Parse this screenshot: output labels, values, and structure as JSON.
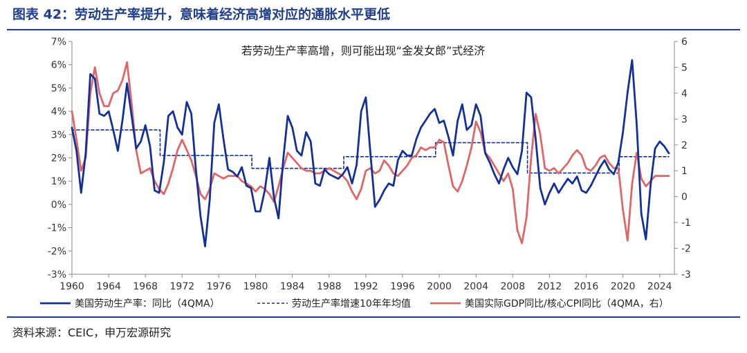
{
  "figure": {
    "title": "图表 42：劳动生产率提升，意味着经济高增对应的通胀水平更低",
    "source": "资料来源：CEIC，申万宏源研究"
  },
  "chart_data": {
    "type": "line",
    "annotation": "若劳动生产率高增，则可能出现“金发女郎”式经济",
    "x_ticks": [
      1960,
      1964,
      1968,
      1972,
      1976,
      1980,
      1984,
      1988,
      1992,
      1996,
      2000,
      2004,
      2008,
      2012,
      2016,
      2020,
      2024
    ],
    "xlim": [
      1960,
      2025.6
    ],
    "y_left": {
      "ticks": [
        -3,
        -2,
        -1,
        0,
        1,
        2,
        3,
        4,
        5,
        6,
        7
      ],
      "tick_labels": [
        "-3%",
        "-2%",
        "-1%",
        "0%",
        "1%",
        "2%",
        "3%",
        "4%",
        "5%",
        "6%",
        "7%"
      ],
      "ylim": [
        -3,
        7
      ]
    },
    "y_right": {
      "ticks": [
        -3,
        -2,
        -1,
        0,
        1,
        2,
        3,
        4,
        5,
        6
      ],
      "tick_labels": [
        "-3",
        "-2",
        "-1",
        "0",
        "1",
        "2",
        "3",
        "4",
        "5",
        "6"
      ],
      "ylim": [
        -3,
        6
      ]
    },
    "legend_position": "bottom",
    "colors": {
      "productivity": "#12309a",
      "avg10": "#12309a",
      "ratio": "#e06666"
    },
    "series": [
      {
        "name": "美国劳动生产率：同比（4QMA）",
        "axis": "left",
        "style": "solid",
        "points": [
          [
            1960,
            3.3
          ],
          [
            1960.5,
            2.3
          ],
          [
            1961,
            0.5
          ],
          [
            1961.5,
            2.2
          ],
          [
            1962,
            5.6
          ],
          [
            1962.5,
            5.4
          ],
          [
            1963,
            3.9
          ],
          [
            1963.5,
            3.8
          ],
          [
            1964,
            4.0
          ],
          [
            1964.5,
            3.2
          ],
          [
            1965,
            2.3
          ],
          [
            1965.5,
            3.6
          ],
          [
            1966,
            5.2
          ],
          [
            1966.5,
            3.8
          ],
          [
            1967,
            2.4
          ],
          [
            1967.5,
            2.7
          ],
          [
            1968,
            3.4
          ],
          [
            1968.5,
            2.5
          ],
          [
            1969,
            0.6
          ],
          [
            1969.5,
            0.5
          ],
          [
            1970,
            1.8
          ],
          [
            1970.5,
            3.8
          ],
          [
            1971,
            4.0
          ],
          [
            1971.5,
            3.3
          ],
          [
            1972,
            3.0
          ],
          [
            1972.5,
            4.4
          ],
          [
            1973,
            3.9
          ],
          [
            1973.5,
            1.5
          ],
          [
            1974,
            -0.5
          ],
          [
            1974.5,
            -1.8
          ],
          [
            1975,
            0.2
          ],
          [
            1975.5,
            3.5
          ],
          [
            1976,
            4.3
          ],
          [
            1976.5,
            2.8
          ],
          [
            1977,
            1.5
          ],
          [
            1977.5,
            1.4
          ],
          [
            1978,
            1.2
          ],
          [
            1978.5,
            1.6
          ],
          [
            1979,
            0.8
          ],
          [
            1979.5,
            0.7
          ],
          [
            1980,
            -0.3
          ],
          [
            1980.5,
            -0.3
          ],
          [
            1981,
            0.6
          ],
          [
            1981.5,
            2.0
          ],
          [
            1982,
            0.3
          ],
          [
            1982.5,
            -0.6
          ],
          [
            1983,
            1.9
          ],
          [
            1983.5,
            3.8
          ],
          [
            1984,
            3.3
          ],
          [
            1984.5,
            2.3
          ],
          [
            1985,
            2.1
          ],
          [
            1985.5,
            3.1
          ],
          [
            1986,
            2.7
          ],
          [
            1986.5,
            0.9
          ],
          [
            1987,
            0.8
          ],
          [
            1987.5,
            1.5
          ],
          [
            1988,
            1.3
          ],
          [
            1988.5,
            1.2
          ],
          [
            1989,
            1.1
          ],
          [
            1989.5,
            1.3
          ],
          [
            1990,
            1.6
          ],
          [
            1990.5,
            0.9
          ],
          [
            1991,
            1.7
          ],
          [
            1991.5,
            4.0
          ],
          [
            1992,
            4.6
          ],
          [
            1992.5,
            2.2
          ],
          [
            1993,
            -0.1
          ],
          [
            1993.5,
            0.2
          ],
          [
            1994,
            0.6
          ],
          [
            1994.5,
            0.9
          ],
          [
            1995,
            0.8
          ],
          [
            1995.5,
            1.9
          ],
          [
            1996,
            2.3
          ],
          [
            1996.5,
            2.1
          ],
          [
            1997,
            2.1
          ],
          [
            1997.5,
            2.8
          ],
          [
            1998,
            3.3
          ],
          [
            1998.5,
            3.6
          ],
          [
            1999,
            3.9
          ],
          [
            1999.5,
            4.1
          ],
          [
            2000,
            3.5
          ],
          [
            2000.5,
            3.6
          ],
          [
            2001,
            2.9
          ],
          [
            2001.5,
            2.1
          ],
          [
            2002,
            3.6
          ],
          [
            2002.5,
            4.3
          ],
          [
            2003,
            3.2
          ],
          [
            2003.5,
            3.4
          ],
          [
            2004,
            4.3
          ],
          [
            2004.5,
            3.8
          ],
          [
            2005,
            2.2
          ],
          [
            2005.5,
            1.8
          ],
          [
            2006,
            1.3
          ],
          [
            2006.5,
            0.9
          ],
          [
            2007,
            1.5
          ],
          [
            2007.5,
            2.0
          ],
          [
            2008,
            1.6
          ],
          [
            2008.5,
            1.3
          ],
          [
            2009,
            2.3
          ],
          [
            2009.5,
            4.8
          ],
          [
            2010,
            4.6
          ],
          [
            2010.5,
            2.8
          ],
          [
            2011,
            0.7
          ],
          [
            2011.5,
            0.0
          ],
          [
            2012,
            0.5
          ],
          [
            2012.5,
            0.9
          ],
          [
            2013,
            0.5
          ],
          [
            2013.5,
            0.8
          ],
          [
            2014,
            1.1
          ],
          [
            2014.5,
            0.9
          ],
          [
            2015,
            1.2
          ],
          [
            2015.5,
            0.6
          ],
          [
            2016,
            0.5
          ],
          [
            2016.5,
            0.8
          ],
          [
            2017,
            1.2
          ],
          [
            2017.5,
            1.6
          ],
          [
            2018,
            1.9
          ],
          [
            2018.5,
            1.5
          ],
          [
            2019,
            1.3
          ],
          [
            2019.5,
            1.8
          ],
          [
            2020,
            3.1
          ],
          [
            2020.5,
            4.8
          ],
          [
            2021,
            6.2
          ],
          [
            2021.5,
            3.4
          ],
          [
            2022,
            -0.4
          ],
          [
            2022.5,
            -1.5
          ],
          [
            2023,
            0.8
          ],
          [
            2023.5,
            2.4
          ],
          [
            2024,
            2.7
          ],
          [
            2024.5,
            2.5
          ],
          [
            2025,
            2.2
          ]
        ]
      },
      {
        "name": "劳动生产率增速10年年均值",
        "axis": "left",
        "style": "dashed",
        "points": [
          [
            1960,
            3.2
          ],
          [
            1969.6,
            3.2
          ],
          [
            1969.6,
            2.1
          ],
          [
            1979.6,
            2.1
          ],
          [
            1979.6,
            1.55
          ],
          [
            1989.6,
            1.55
          ],
          [
            1989.6,
            2.05
          ],
          [
            1999.6,
            2.05
          ],
          [
            1999.6,
            2.65
          ],
          [
            2009.6,
            2.65
          ],
          [
            2009.6,
            1.35
          ],
          [
            2019.6,
            1.35
          ],
          [
            2019.6,
            2.05
          ],
          [
            2025,
            2.05
          ]
        ]
      },
      {
        "name": "美国实际GDP同比/核心CPI同比（4QMA，右）",
        "axis": "right",
        "style": "solid",
        "points": [
          [
            1960,
            3.3
          ],
          [
            1960.5,
            2.2
          ],
          [
            1961,
            1.0
          ],
          [
            1961.5,
            1.5
          ],
          [
            1962,
            4.0
          ],
          [
            1962.5,
            5.0
          ],
          [
            1963,
            4.0
          ],
          [
            1963.5,
            3.5
          ],
          [
            1964,
            3.5
          ],
          [
            1964.5,
            4.0
          ],
          [
            1965,
            4.1
          ],
          [
            1965.5,
            4.5
          ],
          [
            1966,
            5.2
          ],
          [
            1966.5,
            3.6
          ],
          [
            1967,
            1.8
          ],
          [
            1967.5,
            0.9
          ],
          [
            1968,
            1.0
          ],
          [
            1968.5,
            1.1
          ],
          [
            1969,
            0.6
          ],
          [
            1969.5,
            0.3
          ],
          [
            1970,
            0.1
          ],
          [
            1970.5,
            0.5
          ],
          [
            1971,
            1.1
          ],
          [
            1971.5,
            1.8
          ],
          [
            1972,
            2.2
          ],
          [
            1972.5,
            1.8
          ],
          [
            1973,
            1.4
          ],
          [
            1973.5,
            0.8
          ],
          [
            1974,
            0.1
          ],
          [
            1974.5,
            -0.1
          ],
          [
            1975,
            0.3
          ],
          [
            1975.5,
            0.9
          ],
          [
            1976,
            0.8
          ],
          [
            1976.5,
            0.7
          ],
          [
            1977,
            0.8
          ],
          [
            1977.5,
            0.8
          ],
          [
            1978,
            0.8
          ],
          [
            1978.5,
            0.6
          ],
          [
            1979,
            0.5
          ],
          [
            1979.5,
            0.4
          ],
          [
            1980,
            0.2
          ],
          [
            1980.5,
            0.4
          ],
          [
            1981,
            0.3
          ],
          [
            1981.5,
            0.1
          ],
          [
            1982,
            -0.2
          ],
          [
            1982.5,
            0.4
          ],
          [
            1983,
            1.1
          ],
          [
            1983.5,
            1.7
          ],
          [
            1984,
            1.5
          ],
          [
            1984.5,
            1.3
          ],
          [
            1985,
            1.1
          ],
          [
            1985.5,
            1.0
          ],
          [
            1986,
            1.0
          ],
          [
            1986.5,
            0.9
          ],
          [
            1987,
            0.9
          ],
          [
            1987.5,
            1.0
          ],
          [
            1988,
            1.1
          ],
          [
            1988.5,
            1.0
          ],
          [
            1989,
            0.9
          ],
          [
            1989.5,
            0.8
          ],
          [
            1990,
            0.6
          ],
          [
            1990.5,
            0.2
          ],
          [
            1991,
            -0.1
          ],
          [
            1991.5,
            0.3
          ],
          [
            1992,
            1.0
          ],
          [
            1992.5,
            1.1
          ],
          [
            1993,
            0.9
          ],
          [
            1993.5,
            1.0
          ],
          [
            1994,
            1.4
          ],
          [
            1994.5,
            1.2
          ],
          [
            1995,
            0.9
          ],
          [
            1995.5,
            0.8
          ],
          [
            1996,
            1.0
          ],
          [
            1996.5,
            1.2
          ],
          [
            1997,
            1.5
          ],
          [
            1997.5,
            1.6
          ],
          [
            1998,
            1.9
          ],
          [
            1998.5,
            1.8
          ],
          [
            1999,
            1.9
          ],
          [
            1999.5,
            1.9
          ],
          [
            2000,
            2.2
          ],
          [
            2000.5,
            2.1
          ],
          [
            2001,
            1.2
          ],
          [
            2001.5,
            0.4
          ],
          [
            2002,
            0.2
          ],
          [
            2002.5,
            0.6
          ],
          [
            2003,
            1.2
          ],
          [
            2003.5,
            1.9
          ],
          [
            2004,
            2.9
          ],
          [
            2004.5,
            2.5
          ],
          [
            2005,
            1.7
          ],
          [
            2005.5,
            1.5
          ],
          [
            2006,
            1.2
          ],
          [
            2006.5,
            0.9
          ],
          [
            2007,
            0.6
          ],
          [
            2007.5,
            0.9
          ],
          [
            2008,
            0.3
          ],
          [
            2008.5,
            -1.3
          ],
          [
            2009,
            -1.8
          ],
          [
            2009.5,
            -0.8
          ],
          [
            2010,
            1.5
          ],
          [
            2010.5,
            3.2
          ],
          [
            2011,
            2.4
          ],
          [
            2011.5,
            1.1
          ],
          [
            2012,
            1.0
          ],
          [
            2012.5,
            1.1
          ],
          [
            2013,
            0.9
          ],
          [
            2013.5,
            1.1
          ],
          [
            2014,
            1.3
          ],
          [
            2014.5,
            1.6
          ],
          [
            2015,
            1.8
          ],
          [
            2015.5,
            1.6
          ],
          [
            2016,
            1.1
          ],
          [
            2016.5,
            1.0
          ],
          [
            2017,
            1.2
          ],
          [
            2017.5,
            1.5
          ],
          [
            2018,
            1.6
          ],
          [
            2018.5,
            1.3
          ],
          [
            2019,
            1.1
          ],
          [
            2019.5,
            1.1
          ],
          [
            2020,
            -0.5
          ],
          [
            2020.5,
            -1.7
          ],
          [
            2021,
            0.5
          ],
          [
            2021.5,
            1.7
          ],
          [
            2022,
            0.7
          ],
          [
            2022.5,
            0.4
          ],
          [
            2023,
            0.6
          ],
          [
            2023.5,
            0.8
          ],
          [
            2024,
            0.8
          ],
          [
            2025,
            0.8
          ]
        ]
      }
    ]
  }
}
